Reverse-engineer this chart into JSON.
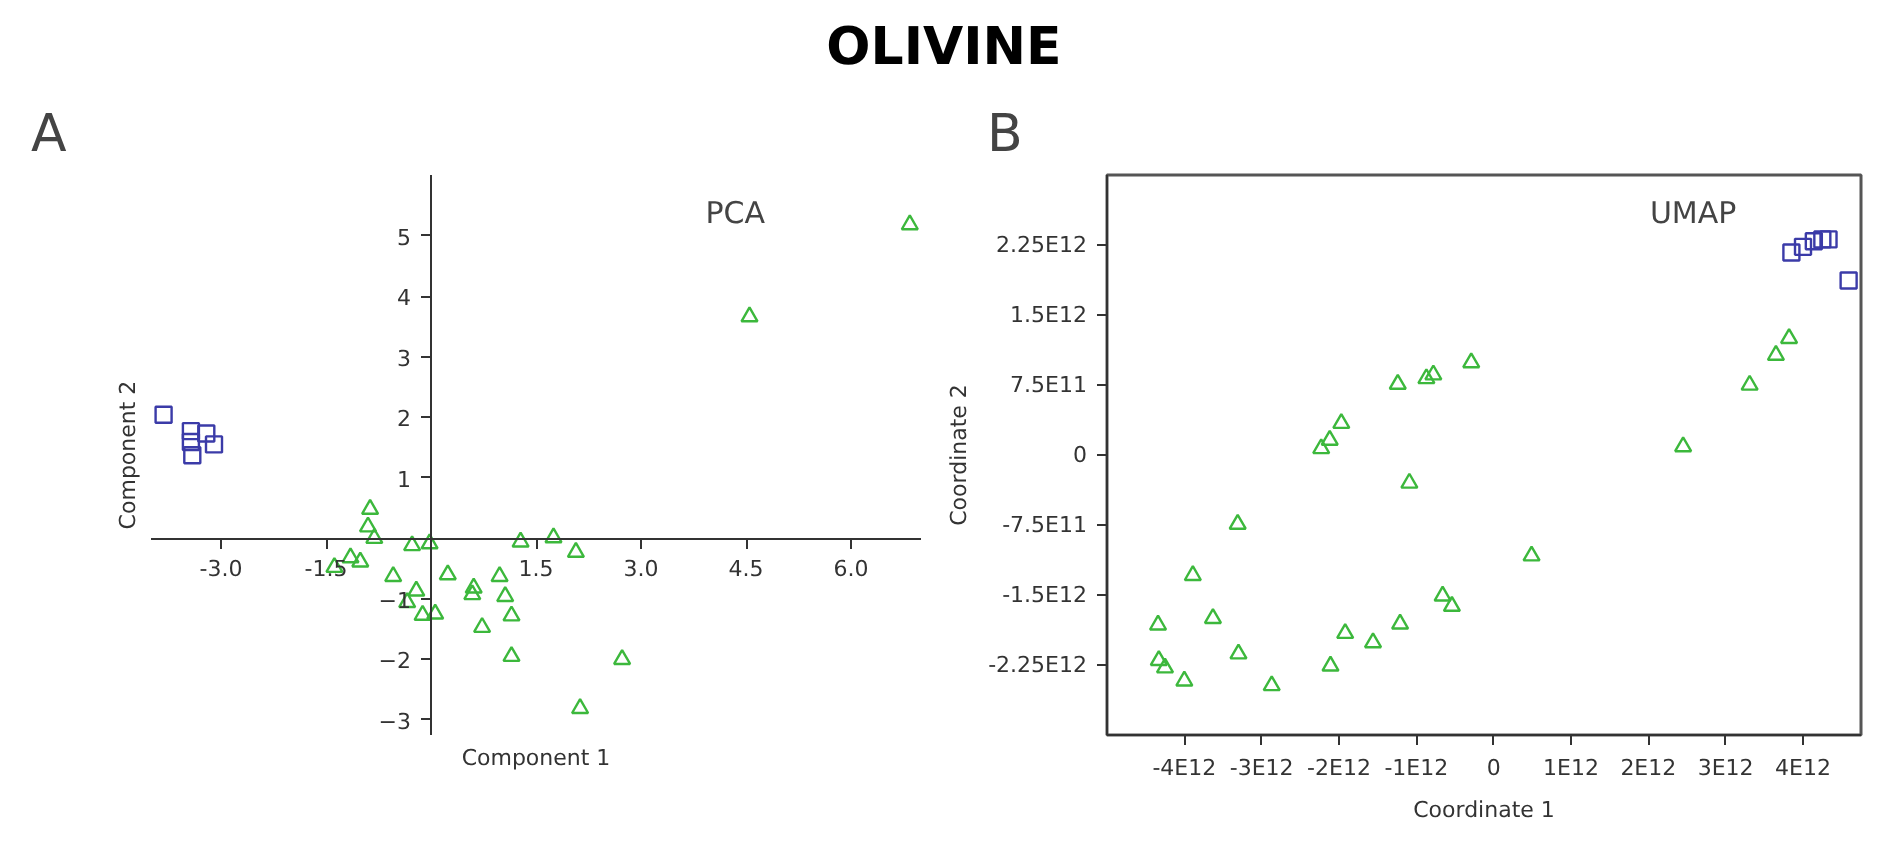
{
  "chart_data": [
    {
      "type": "scatter",
      "title": "OLIVINE",
      "xlabel": "Component 1",
      "ylabel": "Component 2",
      "annotations": [
        "A",
        "PCA"
      ],
      "xlim": [
        -4.0,
        7.0
      ],
      "ylim": [
        -3.25,
        6.0
      ],
      "xticks": [
        {
          "value": -3,
          "label": "-3.0"
        },
        {
          "value": -1.5,
          "label": "-1.5"
        },
        {
          "value": 1.5,
          "label": "1.5"
        },
        {
          "value": 3,
          "label": "3.0"
        },
        {
          "value": 4.5,
          "label": "4.5"
        },
        {
          "value": 6,
          "label": "6.0"
        }
      ],
      "yticks": [
        -3,
        -2,
        -1,
        1,
        2,
        3,
        4,
        5
      ],
      "grid": false,
      "series": [
        {
          "color": "#3b3ba8",
          "marker": "square",
          "x": [
            -3.82,
            -3.43,
            -3.21,
            -3.43,
            -3.1,
            -3.41
          ],
          "values": [
            2.04,
            1.77,
            1.73,
            1.59,
            1.55,
            1.37
          ]
        },
        {
          "color": "#3cb83c",
          "marker": "triangle",
          "x": [
            6.84,
            4.55,
            -0.87,
            -0.9,
            -0.81,
            -0.27,
            -0.02,
            -1.38,
            -1.15,
            -1.01,
            -0.54,
            -0.21,
            -0.34,
            -0.12,
            0.06,
            0.24,
            0.61,
            0.59,
            0.73,
            0.98,
            1.06,
            1.15,
            1.15,
            1.28,
            1.75,
            2.07,
            2.73,
            2.13
          ],
          "values": [
            5.18,
            3.66,
            0.48,
            0.19,
            0.0,
            -0.12,
            -0.09,
            -0.48,
            -0.32,
            -0.39,
            -0.63,
            -0.87,
            -1.06,
            -1.27,
            -1.25,
            -0.6,
            -0.82,
            -0.93,
            -1.47,
            -0.63,
            -0.96,
            -1.28,
            -1.95,
            -0.06,
            0.01,
            -0.23,
            -2.0,
            -2.81
          ]
        }
      ]
    },
    {
      "type": "scatter",
      "xlabel": "Coordinate 1",
      "ylabel": "Coordinate 2",
      "annotations": [
        "B",
        "UMAP"
      ],
      "xlim": [
        -5000000000000.0,
        4750000000000.0
      ],
      "ylim": [
        -3000000000000.0,
        3000000000000.0
      ],
      "xticks": [
        {
          "value": -4000000000000.0,
          "label": "-4E12"
        },
        {
          "value": -3000000000000.0,
          "label": "-3E12"
        },
        {
          "value": -2000000000000.0,
          "label": "-2E12"
        },
        {
          "value": -1000000000000.0,
          "label": "-1E12"
        },
        {
          "value": 0,
          "label": "0"
        },
        {
          "value": 1000000000000.0,
          "label": "1E12"
        },
        {
          "value": 2000000000000.0,
          "label": "2E12"
        },
        {
          "value": 3000000000000.0,
          "label": "3E12"
        },
        {
          "value": 4000000000000.0,
          "label": "4E12"
        }
      ],
      "yticks": [
        {
          "value": -2250000000000.0,
          "label": "-2.25E12"
        },
        {
          "value": -1500000000000.0,
          "label": "-1.5E12"
        },
        {
          "value": -750000000000.0,
          "label": "-7.5E11"
        },
        {
          "value": 0,
          "label": "0"
        },
        {
          "value": 750000000000.0,
          "label": "7.5E11"
        },
        {
          "value": 1500000000000.0,
          "label": "1.5E12"
        },
        {
          "value": 2250000000000.0,
          "label": "2.25E12"
        }
      ],
      "grid": false,
      "series": [
        {
          "color": "#3b3ba8",
          "marker": "square",
          "x": [
            3850000000000.0,
            4000000000000.0,
            4140000000000.0,
            4250000000000.0,
            4330000000000.0,
            4590000000000.0
          ],
          "values": [
            2170000000000.0,
            2230000000000.0,
            2290000000000.0,
            2310000000000.0,
            2310000000000.0,
            1870000000000.0
          ]
        },
        {
          "color": "#3cb83c",
          "marker": "triangle",
          "x": [
            3820000000000.0,
            3650000000000.0,
            3310000000000.0,
            2450000000000.0,
            490000000000.0,
            -290000000000.0,
            -780000000000.0,
            -870000000000.0,
            -1240000000000.0,
            -1090000000000.0,
            -1970000000000.0,
            -2120000000000.0,
            -2230000000000.0,
            -3310000000000.0,
            -3890000000000.0,
            -4340000000000.0,
            -3630000000000.0,
            -4330000000000.0,
            -4250000000000.0,
            -4000000000000.0,
            -3300000000000.0,
            -2870000000000.0,
            -2110000000000.0,
            -1920000000000.0,
            -1560000000000.0,
            -1210000000000.0,
            -660000000000.0,
            -540000000000.0
          ],
          "values": [
            1250000000000.0,
            1070000000000.0,
            750000000000.0,
            90000000000.0,
            -1080000000000.0,
            990000000000.0,
            860000000000.0,
            820000000000.0,
            760000000000.0,
            -300000000000.0,
            340000000000.0,
            160000000000.0,
            70000000000.0,
            -740000000000.0,
            -1290000000000.0,
            -1820000000000.0,
            -1750000000000.0,
            -2200000000000.0,
            -2280000000000.0,
            -2420000000000.0,
            -2130000000000.0,
            -2470000000000.0,
            -2260000000000.0,
            -1910000000000.0,
            -2010000000000.0,
            -1810000000000.0,
            -1510000000000.0,
            -1620000000000.0
          ]
        }
      ]
    }
  ]
}
